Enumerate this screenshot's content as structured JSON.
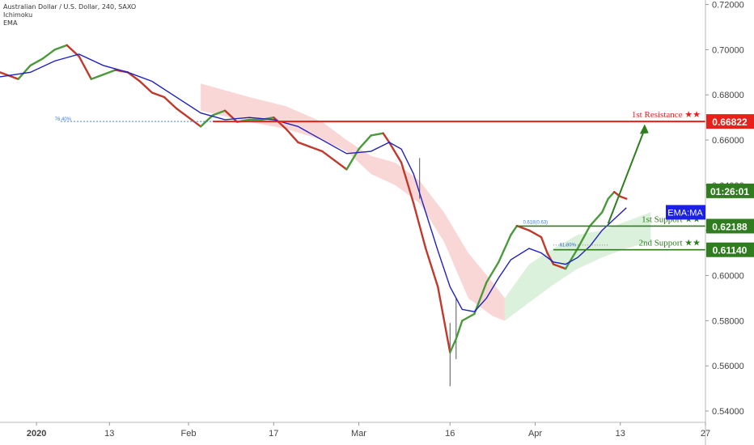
{
  "header": {
    "symbol": "Australian Dollar / U.S. Dollar, 240, SAXO",
    "indicator_1": "Ichimoku",
    "indicator_2": "EMA"
  },
  "colors": {
    "candle_up": "#4a9a3c",
    "candle_down": "#c0392b",
    "ema": "#2020c0",
    "resistance": "#e8201c",
    "support": "#2f7d1e",
    "cloud_bear": "#f7c9c9",
    "cloud_bull": "#cfeccf",
    "fib": "#3b7dd8",
    "ema_badge": "#1a20e8"
  },
  "chart_data": {
    "type": "line",
    "title": "",
    "price_axis": {
      "ylim": [
        0.535,
        0.722
      ],
      "ticks": [
        "0.72000",
        "0.70000",
        "0.68000",
        "0.66000",
        "0.64000",
        "0.62000",
        "0.60000",
        "0.58000",
        "0.56000",
        "0.54000"
      ],
      "tick_values": [
        0.72,
        0.7,
        0.68,
        0.66,
        0.64,
        0.62,
        0.6,
        0.58,
        0.56,
        0.54
      ]
    },
    "time_axis": {
      "xlim": [
        -3,
        113
      ],
      "labels": [
        "2020",
        "13",
        "Feb",
        "17",
        "Mar",
        "16",
        "Apr",
        "13",
        "27"
      ],
      "label_days": [
        3,
        15,
        28,
        42,
        56,
        71,
        85,
        99,
        113
      ]
    },
    "price_series": {
      "name": "AUDUSD",
      "x": [
        -3,
        0,
        2,
        4,
        6,
        8,
        10,
        12,
        14,
        16,
        18,
        20,
        22,
        24,
        26,
        28,
        30,
        32,
        34,
        36,
        38,
        40,
        42,
        44,
        46,
        48,
        50,
        52,
        54,
        56,
        58,
        60,
        61,
        63,
        65,
        67,
        69,
        71,
        72,
        73,
        75,
        77,
        79,
        81,
        82,
        84,
        86,
        87,
        88,
        90,
        92,
        94,
        96,
        97,
        98,
        99,
        100
      ],
      "y": [
        0.69,
        0.687,
        0.693,
        0.696,
        0.7,
        0.702,
        0.697,
        0.687,
        0.689,
        0.691,
        0.69,
        0.686,
        0.681,
        0.679,
        0.674,
        0.67,
        0.666,
        0.671,
        0.673,
        0.668,
        0.669,
        0.669,
        0.67,
        0.665,
        0.659,
        0.657,
        0.655,
        0.651,
        0.647,
        0.656,
        0.662,
        0.663,
        0.659,
        0.65,
        0.632,
        0.612,
        0.595,
        0.566,
        0.572,
        0.58,
        0.583,
        0.597,
        0.606,
        0.618,
        0.622,
        0.62,
        0.617,
        0.61,
        0.605,
        0.603,
        0.612,
        0.622,
        0.628,
        0.634,
        0.637,
        0.635,
        0.634
      ]
    },
    "ema_series": {
      "name": "EMA",
      "x": [
        -3,
        2,
        6,
        10,
        14,
        18,
        22,
        26,
        30,
        34,
        38,
        42,
        46,
        50,
        54,
        58,
        61,
        63,
        65,
        67,
        69,
        71,
        73,
        75,
        77,
        79,
        81,
        84,
        86,
        88,
        90,
        92,
        94,
        96,
        98,
        100
      ],
      "y": [
        0.688,
        0.69,
        0.695,
        0.698,
        0.693,
        0.69,
        0.686,
        0.679,
        0.672,
        0.669,
        0.67,
        0.669,
        0.666,
        0.66,
        0.654,
        0.655,
        0.659,
        0.656,
        0.645,
        0.628,
        0.611,
        0.595,
        0.585,
        0.584,
        0.59,
        0.599,
        0.607,
        0.612,
        0.61,
        0.606,
        0.605,
        0.608,
        0.613,
        0.62,
        0.625,
        0.63
      ]
    },
    "wicks": [
      {
        "x": 66,
        "high": 0.652,
        "low": 0.634
      },
      {
        "x": 71,
        "high": 0.579,
        "low": 0.551
      },
      {
        "x": 72,
        "high": 0.59,
        "low": 0.563
      }
    ],
    "levels": [
      {
        "name": "1st Resistance",
        "price": 0.66822,
        "label": "1st Resistance ★★",
        "value_label": "0.66822",
        "role": "resistance",
        "x_start": 32
      },
      {
        "name": "1st Support",
        "price": 0.62188,
        "label": "1st Support ★★",
        "value_label": "0.62188",
        "role": "support",
        "x_start": 82
      },
      {
        "name": "2nd Support",
        "price": 0.6114,
        "label": "2nd Support ★★",
        "value_label": "0.61140",
        "role": "support",
        "x_start": 88
      }
    ],
    "current_price_tag": {
      "label": "01:26:01",
      "price": 0.6375
    },
    "ema_badge": {
      "label": "EMA:MA",
      "price": 0.628
    },
    "fib_labels": [
      {
        "text": "76.40%",
        "x": 6,
        "price": 0.6682
      },
      {
        "text": "0.618(0.63)",
        "x": 83,
        "price": 0.6225
      },
      {
        "text": "61.80%",
        "x": 89,
        "price": 0.6125
      }
    ],
    "projection_arrow": {
      "x1": 97,
      "y1": 0.623,
      "x2": 103,
      "y2": 0.667
    },
    "clouds": [
      {
        "kind": "bear",
        "top_x": [
          30,
          38,
          44,
          50,
          54,
          58,
          62,
          66,
          70,
          74,
          78,
          80
        ],
        "top_y": [
          0.685,
          0.679,
          0.675,
          0.668,
          0.66,
          0.653,
          0.65,
          0.642,
          0.628,
          0.61,
          0.597,
          0.59
        ],
        "bot_x": [
          30,
          38,
          44,
          50,
          54,
          58,
          62,
          66,
          70,
          74,
          78,
          80
        ],
        "bot_y": [
          0.673,
          0.668,
          0.665,
          0.66,
          0.655,
          0.645,
          0.64,
          0.632,
          0.615,
          0.59,
          0.582,
          0.58
        ]
      },
      {
        "kind": "bull",
        "top_x": [
          80,
          84,
          88,
          92,
          96,
          100,
          104
        ],
        "top_y": [
          0.59,
          0.605,
          0.612,
          0.618,
          0.62,
          0.624,
          0.628
        ],
        "bot_x": [
          80,
          84,
          88,
          92,
          96,
          100,
          104
        ],
        "bot_y": [
          0.58,
          0.588,
          0.596,
          0.603,
          0.608,
          0.612,
          0.615
        ]
      }
    ]
  }
}
